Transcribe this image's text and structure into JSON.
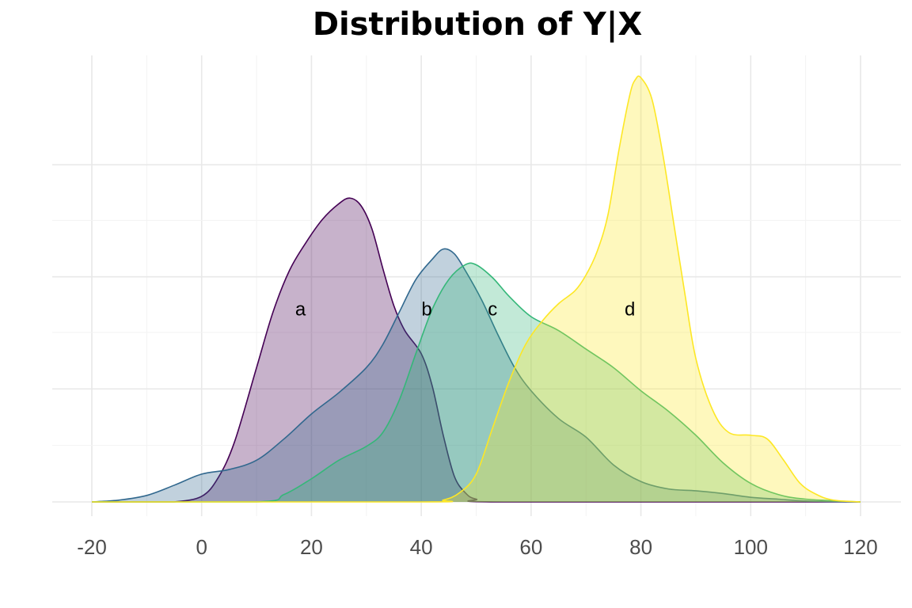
{
  "chart_data": {
    "type": "area",
    "title": "Distribution of Y|X",
    "xlabel": "",
    "ylabel": "",
    "xlim": [
      -20,
      120
    ],
    "x_ticks": [
      -20,
      0,
      20,
      40,
      60,
      80,
      100,
      120
    ],
    "grid": true,
    "legend": "none",
    "series": [
      {
        "label": "a",
        "label_pos": [
          18,
          0.0208
        ],
        "color": "#440154",
        "points": [
          [
            -20,
            0
          ],
          [
            -10,
            0
          ],
          [
            -5,
            0
          ],
          [
            0,
            0.0006
          ],
          [
            3,
            0.0026
          ],
          [
            6,
            0.0065
          ],
          [
            10,
            0.0145
          ],
          [
            13,
            0.0205
          ],
          [
            16,
            0.025
          ],
          [
            19,
            0.028
          ],
          [
            22,
            0.0305
          ],
          [
            25,
            0.0322
          ],
          [
            27,
            0.0328
          ],
          [
            29,
            0.032
          ],
          [
            31,
            0.0295
          ],
          [
            33,
            0.0252
          ],
          [
            35,
            0.0212
          ],
          [
            37,
            0.0185
          ],
          [
            40,
            0.016
          ],
          [
            42,
            0.0125
          ],
          [
            44,
            0.0072
          ],
          [
            46,
            0.0028
          ],
          [
            48,
            0.001
          ],
          [
            50,
            0.0003
          ],
          [
            55,
            0
          ],
          [
            120,
            0
          ]
        ]
      },
      {
        "label": "b",
        "label_pos": [
          41,
          0.0208
        ],
        "color": "#31688e",
        "points": [
          [
            -20,
            0
          ],
          [
            -15,
            0.0002
          ],
          [
            -10,
            0.0007
          ],
          [
            -5,
            0.0018
          ],
          [
            0,
            0.003
          ],
          [
            5,
            0.0035
          ],
          [
            10,
            0.0045
          ],
          [
            15,
            0.0068
          ],
          [
            20,
            0.0095
          ],
          [
            25,
            0.0118
          ],
          [
            30,
            0.0145
          ],
          [
            33,
            0.017
          ],
          [
            36,
            0.0205
          ],
          [
            39,
            0.024
          ],
          [
            42,
            0.0262
          ],
          [
            44,
            0.0273
          ],
          [
            46,
            0.0268
          ],
          [
            48,
            0.025
          ],
          [
            51,
            0.0218
          ],
          [
            54,
            0.018
          ],
          [
            57,
            0.0145
          ],
          [
            60,
            0.012
          ],
          [
            65,
            0.009
          ],
          [
            70,
            0.007
          ],
          [
            75,
            0.004
          ],
          [
            80,
            0.0022
          ],
          [
            85,
            0.0014
          ],
          [
            90,
            0.0012
          ],
          [
            95,
            0.0009
          ],
          [
            100,
            0.0005
          ],
          [
            105,
            0.0003
          ],
          [
            110,
            0.0001
          ],
          [
            120,
            0
          ]
        ]
      },
      {
        "label": "c",
        "label_pos": [
          53,
          0.0208
        ],
        "color": "#35b779",
        "points": [
          [
            -20,
            0
          ],
          [
            10,
            0
          ],
          [
            15,
            0.0008
          ],
          [
            20,
            0.0025
          ],
          [
            25,
            0.0045
          ],
          [
            30,
            0.006
          ],
          [
            33,
            0.0075
          ],
          [
            36,
            0.011
          ],
          [
            39,
            0.016
          ],
          [
            42,
            0.0208
          ],
          [
            45,
            0.024
          ],
          [
            48,
            0.0256
          ],
          [
            50,
            0.0256
          ],
          [
            53,
            0.0242
          ],
          [
            56,
            0.0222
          ],
          [
            60,
            0.02
          ],
          [
            65,
            0.0185
          ],
          [
            70,
            0.0165
          ],
          [
            75,
            0.0145
          ],
          [
            80,
            0.012
          ],
          [
            85,
            0.0098
          ],
          [
            90,
            0.0072
          ],
          [
            95,
            0.0042
          ],
          [
            100,
            0.002
          ],
          [
            105,
            0.0008
          ],
          [
            110,
            0.0003
          ],
          [
            120,
            0
          ]
        ]
      },
      {
        "label": "d",
        "label_pos": [
          78,
          0.0208
        ],
        "color": "#fde725",
        "points": [
          [
            -20,
            0
          ],
          [
            40,
            0
          ],
          [
            44,
            0.0002
          ],
          [
            47,
            0.001
          ],
          [
            50,
            0.003
          ],
          [
            53,
            0.008
          ],
          [
            56,
            0.013
          ],
          [
            59,
            0.017
          ],
          [
            62,
            0.0195
          ],
          [
            65,
            0.0214
          ],
          [
            68,
            0.0228
          ],
          [
            70,
            0.0245
          ],
          [
            72,
            0.027
          ],
          [
            74,
            0.031
          ],
          [
            76,
            0.038
          ],
          [
            78,
            0.044
          ],
          [
            79,
            0.0456
          ],
          [
            80,
            0.0458
          ],
          [
            82,
            0.0435
          ],
          [
            84,
            0.0375
          ],
          [
            86,
            0.03
          ],
          [
            88,
            0.0225
          ],
          [
            90,
            0.0155
          ],
          [
            93,
            0.01
          ],
          [
            96,
            0.0075
          ],
          [
            100,
            0.0072
          ],
          [
            103,
            0.0068
          ],
          [
            106,
            0.0045
          ],
          [
            109,
            0.002
          ],
          [
            112,
            0.0008
          ],
          [
            115,
            0.0002
          ],
          [
            120,
            0
          ]
        ]
      }
    ]
  }
}
